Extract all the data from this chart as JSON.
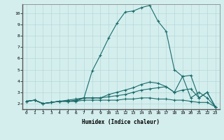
{
  "xlabel": "Humidex (Indice chaleur)",
  "ylabel": "",
  "bg_color": "#d4eeee",
  "grid_color": "#b8d8d8",
  "line_color": "#1a6b6b",
  "xlim": [
    -0.5,
    23.5
  ],
  "ylim": [
    1.5,
    10.8
  ],
  "xticks": [
    0,
    1,
    2,
    3,
    4,
    5,
    6,
    7,
    8,
    9,
    10,
    11,
    12,
    13,
    14,
    15,
    16,
    17,
    18,
    19,
    20,
    21,
    22,
    23
  ],
  "yticks": [
    2,
    3,
    4,
    5,
    6,
    7,
    8,
    9,
    10
  ],
  "curve1_x": [
    0,
    1,
    2,
    3,
    4,
    5,
    6,
    7,
    8,
    9,
    10,
    11,
    12,
    13,
    14,
    15,
    16,
    17,
    18,
    19,
    20,
    21,
    22,
    23
  ],
  "curve1_y": [
    2.2,
    2.3,
    2.0,
    2.1,
    2.2,
    2.2,
    2.2,
    2.5,
    4.9,
    6.3,
    7.8,
    9.1,
    10.1,
    10.2,
    10.5,
    10.7,
    9.3,
    8.4,
    5.0,
    4.4,
    2.5,
    3.0,
    2.5,
    1.7
  ],
  "curve2_x": [
    0,
    1,
    2,
    3,
    4,
    5,
    6,
    7,
    8,
    9,
    10,
    11,
    12,
    13,
    14,
    15,
    16,
    17,
    18,
    19,
    20,
    21,
    22,
    23
  ],
  "curve2_y": [
    2.2,
    2.3,
    2.0,
    2.1,
    2.2,
    2.2,
    2.3,
    2.5,
    2.5,
    2.5,
    2.8,
    3.0,
    3.2,
    3.4,
    3.7,
    3.9,
    3.8,
    3.5,
    3.0,
    4.4,
    4.5,
    2.5,
    3.0,
    1.7
  ],
  "curve3_x": [
    0,
    1,
    2,
    3,
    4,
    5,
    6,
    7,
    8,
    9,
    10,
    11,
    12,
    13,
    14,
    15,
    16,
    17,
    18,
    19,
    20,
    21,
    22,
    23
  ],
  "curve3_y": [
    2.2,
    2.3,
    2.0,
    2.1,
    2.2,
    2.3,
    2.4,
    2.5,
    2.5,
    2.5,
    2.6,
    2.7,
    2.8,
    3.0,
    3.2,
    3.3,
    3.4,
    3.5,
    3.0,
    3.2,
    3.3,
    2.5,
    3.0,
    1.7
  ],
  "curve4_x": [
    0,
    1,
    2,
    3,
    4,
    5,
    6,
    7,
    8,
    9,
    10,
    11,
    12,
    13,
    14,
    15,
    16,
    17,
    18,
    19,
    20,
    21,
    22,
    23
  ],
  "curve4_y": [
    2.2,
    2.3,
    2.0,
    2.1,
    2.2,
    2.2,
    2.2,
    2.3,
    2.3,
    2.3,
    2.3,
    2.3,
    2.4,
    2.4,
    2.5,
    2.5,
    2.4,
    2.4,
    2.3,
    2.3,
    2.2,
    2.1,
    2.1,
    1.7
  ]
}
